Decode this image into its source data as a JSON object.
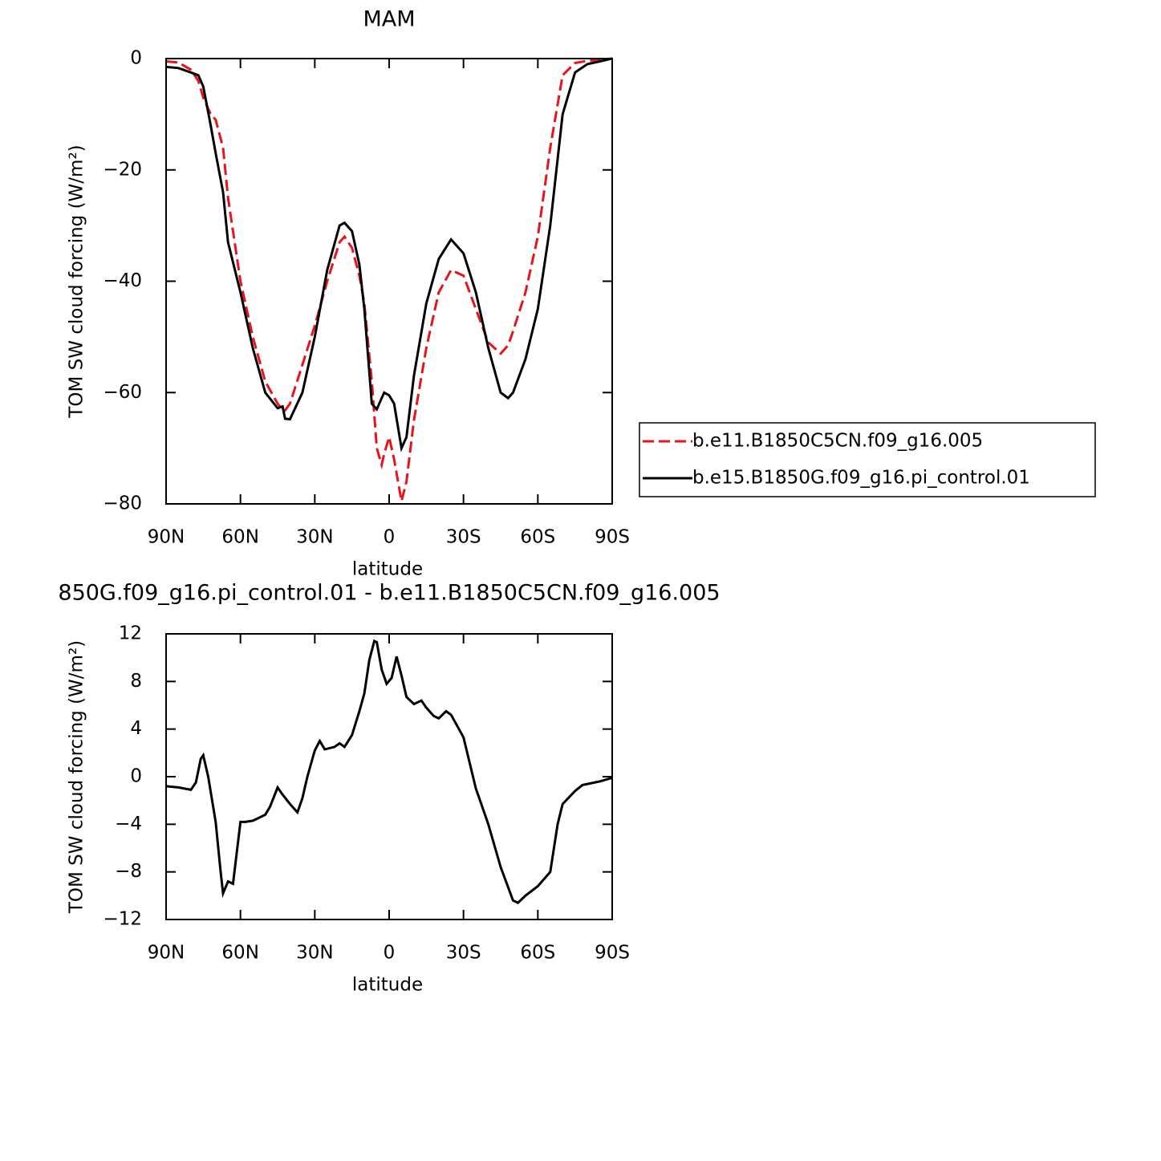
{
  "chart_data": [
    {
      "type": "line",
      "title": "MAM",
      "xlabel": "latitude",
      "ylabel": "TOM SW cloud forcing (W/m²)",
      "x": [
        90,
        85,
        80,
        77,
        75,
        72,
        70,
        67,
        65,
        60,
        55,
        50,
        45,
        43,
        42,
        40,
        35,
        30,
        25,
        20,
        18,
        15,
        12,
        10,
        7,
        5,
        3,
        2,
        0,
        -2,
        -5,
        -7,
        -10,
        -15,
        -20,
        -25,
        -30,
        -35,
        -40,
        -45,
        -48,
        -50,
        -55,
        -60,
        -65,
        -70,
        -75,
        -80,
        -85,
        -90
      ],
      "series": [
        {
          "name": "b.e11.B1850C5CN.f09_g16.005",
          "color": "#e8141c",
          "line_style": "dashed",
          "values": [
            -0.5,
            -0.7,
            -2,
            -4,
            -7,
            -10,
            -11,
            -16,
            -25,
            -40,
            -50,
            -58,
            -62,
            -63,
            -63.2,
            -62,
            -55,
            -48,
            -40,
            -33,
            -32,
            -34,
            -39,
            -44,
            -58,
            -70,
            -73,
            -71,
            -68,
            -72,
            -79.5,
            -76,
            -65,
            -52,
            -42,
            -38,
            -39,
            -45,
            -51,
            -53,
            -51.5,
            -49,
            -42,
            -32,
            -16,
            -3,
            -0.8,
            -0.4,
            -0.2,
            0
          ]
        },
        {
          "name": "b.e15.B1850G.f09_g16.pi_control.01",
          "color": "#000000",
          "line_style": "solid",
          "values": [
            -1.5,
            -1.7,
            -2.5,
            -3,
            -5,
            -12,
            -17,
            -24,
            -33,
            -42,
            -52,
            -60,
            -62.8,
            -62.5,
            -64.7,
            -64.8,
            -60,
            -50,
            -38,
            -30,
            -29.5,
            -31,
            -37,
            -45,
            -62,
            -63,
            -61,
            -60,
            -60.5,
            -62,
            -70,
            -68,
            -57,
            -44,
            -36,
            -32.5,
            -35,
            -42,
            -52,
            -60,
            -61,
            -60,
            -54,
            -45,
            -30,
            -10,
            -2.5,
            -1,
            -0.5,
            0
          ]
        }
      ],
      "xlim": [
        90,
        -90
      ],
      "xticks": [
        {
          "value": 90,
          "label": "90N"
        },
        {
          "value": 60,
          "label": "60N"
        },
        {
          "value": 30,
          "label": "30N"
        },
        0,
        {
          "value": -30,
          "label": "30S"
        },
        {
          "value": -60,
          "label": "60S"
        },
        {
          "value": -90,
          "label": "90S"
        }
      ],
      "ylim": [
        -80,
        0
      ],
      "yticks": [
        0,
        -20,
        -40,
        -60,
        -80
      ],
      "legend": "outside right"
    },
    {
      "type": "line",
      "title": "850G.f09_g16.pi_control.01 - b.e11.B1850C5CN.f09_g16.005",
      "xlabel": "latitude",
      "ylabel": "TOM SW cloud forcing (W/m²)",
      "x": [
        90,
        85,
        80,
        78,
        76,
        75,
        73,
        70,
        68,
        67,
        65,
        63,
        60,
        58,
        55,
        50,
        48,
        45,
        43,
        40,
        37,
        35,
        33,
        30,
        28,
        26,
        22,
        20,
        18,
        15,
        12,
        10,
        8,
        6,
        5,
        3,
        1,
        -1,
        -3,
        -5,
        -7,
        -10,
        -13,
        -15,
        -18,
        -20,
        -23,
        -25,
        -30,
        -35,
        -40,
        -45,
        -50,
        -52,
        -55,
        -60,
        -65,
        -68,
        -70,
        -75,
        -78,
        -85,
        -90
      ],
      "series": [
        {
          "color": "#000000",
          "line_style": "solid",
          "values": [
            -0.8,
            -0.9,
            -1.1,
            -0.5,
            1.5,
            1.8,
            0,
            -3.8,
            -8,
            -9.8,
            -8.8,
            -9,
            -3.8,
            -3.8,
            -3.7,
            -3.2,
            -2.5,
            -0.9,
            -1.5,
            -2.3,
            -3,
            -1.8,
            0,
            2.2,
            3,
            2.3,
            2.5,
            2.8,
            2.5,
            3.5,
            5.5,
            7,
            9.8,
            11.4,
            11.3,
            9,
            7.8,
            8.3,
            10.1,
            8.5,
            6.7,
            6.1,
            6.4,
            5.8,
            5.1,
            4.9,
            5.5,
            5.2,
            3.3,
            -1,
            -4,
            -7.6,
            -10.4,
            -10.6,
            -10,
            -9.2,
            -8,
            -4,
            -2.3,
            -1.2,
            -0.7,
            -0.4,
            -0.1
          ]
        }
      ],
      "xlim": [
        90,
        -90
      ],
      "xticks": [
        {
          "value": 90,
          "label": "90N"
        },
        {
          "value": 60,
          "label": "60N"
        },
        {
          "value": 30,
          "label": "30N"
        },
        0,
        {
          "value": -30,
          "label": "30S"
        },
        {
          "value": -60,
          "label": "60S"
        },
        {
          "value": -90,
          "label": "90S"
        }
      ],
      "ylim": [
        -12,
        12
      ],
      "yticks": [
        12,
        8,
        4,
        0,
        -4,
        -8,
        -12
      ]
    }
  ]
}
